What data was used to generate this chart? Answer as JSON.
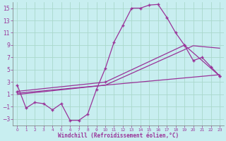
{
  "xlabel": "Windchill (Refroidissement éolien,°C)",
  "background_color": "#c8eef0",
  "grid_color": "#aad8cc",
  "line_color": "#993399",
  "xlim": [
    -0.5,
    23.5
  ],
  "ylim": [
    -4,
    16
  ],
  "xticks": [
    0,
    1,
    2,
    3,
    4,
    5,
    6,
    7,
    8,
    9,
    10,
    11,
    12,
    13,
    14,
    15,
    16,
    17,
    18,
    19,
    20,
    21,
    22,
    23
  ],
  "yticks": [
    -3,
    -1,
    1,
    3,
    5,
    7,
    9,
    11,
    13,
    15
  ],
  "curve1_x": [
    0,
    1,
    2,
    3,
    4,
    5,
    6,
    7,
    8,
    9,
    10,
    11,
    12,
    13,
    14,
    15,
    16,
    17,
    18,
    19,
    20,
    21,
    22,
    23
  ],
  "curve1_y": [
    2.5,
    -1.2,
    -0.3,
    -0.5,
    -1.5,
    -0.5,
    -3.2,
    -3.2,
    -2.2,
    1.8,
    5.2,
    9.5,
    12.2,
    15.0,
    15.0,
    15.5,
    15.6,
    13.5,
    11.0,
    9.0,
    6.5,
    7.0,
    5.5,
    4.0
  ],
  "curve2_x": [
    0,
    10,
    19,
    23
  ],
  "curve2_y": [
    1.5,
    3.0,
    9.0,
    4.0
  ],
  "curve3_x": [
    0,
    10,
    20,
    23
  ],
  "curve3_y": [
    1.0,
    2.5,
    8.9,
    8.5
  ],
  "curve4_x": [
    0,
    23
  ],
  "curve4_y": [
    1.2,
    4.2
  ]
}
